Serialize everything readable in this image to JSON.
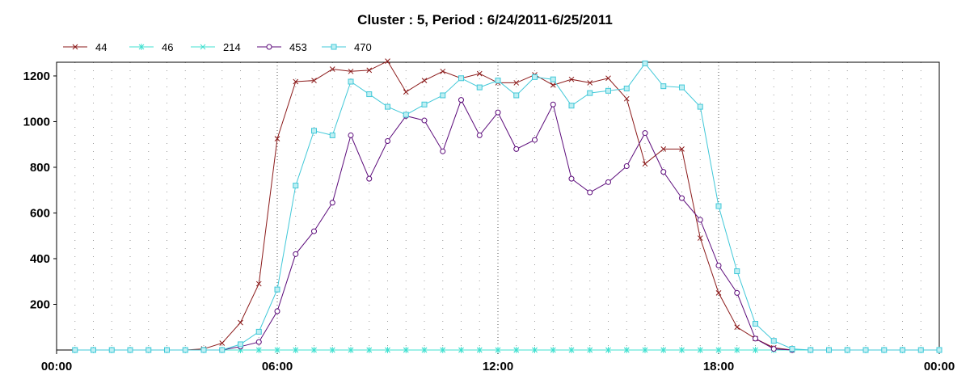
{
  "chart_data": {
    "type": "line",
    "title": "Cluster : 5, Period : 6/24/2011-6/25/2011",
    "xlabel": "",
    "ylabel": "",
    "x_unit": "hours",
    "xlim": [
      0,
      24
    ],
    "ylim": [
      0,
      1260
    ],
    "x_ticks": [
      {
        "value": 0,
        "label": "00:00"
      },
      {
        "value": 6,
        "label": "06:00"
      },
      {
        "value": 12,
        "label": "12:00"
      },
      {
        "value": 18,
        "label": "18:00"
      },
      {
        "value": 24,
        "label": "00:00"
      }
    ],
    "y_ticks": [
      200,
      400,
      600,
      800,
      1000,
      1200
    ],
    "grid": "dotted vertical lines every 30 minutes, heavier every 6 hours",
    "legend_position": "top-left",
    "series": [
      {
        "name": "44",
        "color": "#8b1a1a",
        "marker": "x",
        "points": [
          [
            0.5,
            0
          ],
          [
            1,
            0
          ],
          [
            1.5,
            0
          ],
          [
            2,
            0
          ],
          [
            2.5,
            0
          ],
          [
            3,
            0
          ],
          [
            3.5,
            0
          ],
          [
            4,
            5
          ],
          [
            4.5,
            30
          ],
          [
            5,
            120
          ],
          [
            5.5,
            290
          ],
          [
            6,
            925
          ],
          [
            6.5,
            1175
          ],
          [
            7,
            1180
          ],
          [
            7.5,
            1230
          ],
          [
            8,
            1220
          ],
          [
            8.5,
            1225
          ],
          [
            9,
            1265
          ],
          [
            9.5,
            1130
          ],
          [
            10,
            1180
          ],
          [
            10.5,
            1220
          ],
          [
            11,
            1190
          ],
          [
            11.5,
            1210
          ],
          [
            12,
            1170
          ],
          [
            12.5,
            1170
          ],
          [
            13,
            1205
          ],
          [
            13.5,
            1160
          ],
          [
            14,
            1185
          ],
          [
            14.5,
            1170
          ],
          [
            15,
            1190
          ],
          [
            15.5,
            1100
          ],
          [
            16,
            815
          ],
          [
            16.5,
            880
          ],
          [
            17,
            880
          ],
          [
            17.5,
            490
          ],
          [
            18,
            250
          ],
          [
            18.5,
            100
          ],
          [
            19,
            50
          ],
          [
            19.5,
            10
          ],
          [
            20,
            0
          ],
          [
            20.5,
            0
          ],
          [
            21,
            0
          ],
          [
            21.5,
            0
          ],
          [
            22,
            0
          ],
          [
            22.5,
            0
          ],
          [
            23,
            0
          ],
          [
            23.5,
            0
          ],
          [
            24,
            0
          ]
        ]
      },
      {
        "name": "46",
        "color": "#40e0d0",
        "marker": "star",
        "points": [
          [
            0.5,
            0
          ],
          [
            1,
            0
          ],
          [
            1.5,
            0
          ],
          [
            2,
            0
          ],
          [
            2.5,
            0
          ],
          [
            3,
            0
          ],
          [
            3.5,
            0
          ],
          [
            4,
            0
          ],
          [
            4.5,
            0
          ],
          [
            5,
            0
          ],
          [
            5.5,
            0
          ],
          [
            6,
            0
          ],
          [
            6.5,
            0
          ],
          [
            7,
            0
          ],
          [
            7.5,
            0
          ],
          [
            8,
            0
          ],
          [
            8.5,
            0
          ],
          [
            9,
            0
          ],
          [
            9.5,
            0
          ],
          [
            10,
            0
          ],
          [
            10.5,
            0
          ],
          [
            11,
            0
          ],
          [
            11.5,
            0
          ],
          [
            12,
            0
          ],
          [
            12.5,
            0
          ],
          [
            13,
            0
          ],
          [
            13.5,
            0
          ],
          [
            14,
            0
          ],
          [
            14.5,
            0
          ],
          [
            15,
            0
          ],
          [
            15.5,
            0
          ],
          [
            16,
            0
          ],
          [
            16.5,
            0
          ],
          [
            17,
            0
          ],
          [
            17.5,
            0
          ],
          [
            18,
            0
          ],
          [
            18.5,
            0
          ],
          [
            19,
            0
          ],
          [
            19.5,
            0
          ],
          [
            20,
            0
          ],
          [
            20.5,
            0
          ],
          [
            21,
            0
          ],
          [
            21.5,
            0
          ],
          [
            22,
            0
          ],
          [
            22.5,
            0
          ],
          [
            23,
            0
          ],
          [
            23.5,
            0
          ],
          [
            24,
            0
          ]
        ]
      },
      {
        "name": "214",
        "color": "#40e0d0",
        "marker": "x",
        "points": [
          [
            0.5,
            0
          ],
          [
            1,
            0
          ],
          [
            1.5,
            0
          ],
          [
            2,
            0
          ],
          [
            2.5,
            0
          ],
          [
            3,
            0
          ],
          [
            3.5,
            0
          ],
          [
            4,
            0
          ],
          [
            4.5,
            0
          ],
          [
            5,
            0
          ],
          [
            5.5,
            0
          ],
          [
            6,
            0
          ],
          [
            6.5,
            0
          ],
          [
            7,
            0
          ],
          [
            7.5,
            0
          ],
          [
            8,
            0
          ],
          [
            8.5,
            0
          ],
          [
            9,
            0
          ],
          [
            9.5,
            0
          ],
          [
            10,
            0
          ],
          [
            10.5,
            0
          ],
          [
            11,
            0
          ],
          [
            11.5,
            0
          ],
          [
            12,
            0
          ],
          [
            12.5,
            0
          ],
          [
            13,
            0
          ],
          [
            13.5,
            0
          ],
          [
            14,
            0
          ],
          [
            14.5,
            0
          ],
          [
            15,
            0
          ],
          [
            15.5,
            0
          ],
          [
            16,
            0
          ],
          [
            16.5,
            0
          ],
          [
            17,
            0
          ],
          [
            17.5,
            0
          ],
          [
            18,
            0
          ],
          [
            18.5,
            0
          ],
          [
            19,
            0
          ],
          [
            19.5,
            0
          ],
          [
            20,
            0
          ],
          [
            20.5,
            0
          ],
          [
            21,
            0
          ],
          [
            21.5,
            0
          ],
          [
            22,
            0
          ],
          [
            22.5,
            0
          ],
          [
            23,
            0
          ],
          [
            23.5,
            0
          ],
          [
            24,
            0
          ]
        ]
      },
      {
        "name": "453",
        "color": "#5b0a7a",
        "marker": "circle",
        "points": [
          [
            4,
            0
          ],
          [
            4.5,
            0
          ],
          [
            5,
            15
          ],
          [
            5.5,
            35
          ],
          [
            6,
            170
          ],
          [
            6.5,
            420
          ],
          [
            7,
            520
          ],
          [
            7.5,
            645
          ],
          [
            8,
            940
          ],
          [
            8.5,
            750
          ],
          [
            9,
            915
          ],
          [
            9.5,
            1025
          ],
          [
            10,
            1005
          ],
          [
            10.5,
            870
          ],
          [
            11,
            1095
          ],
          [
            11.5,
            940
          ],
          [
            12,
            1040
          ],
          [
            12.5,
            880
          ],
          [
            13,
            920
          ],
          [
            13.5,
            1075
          ],
          [
            14,
            750
          ],
          [
            14.5,
            690
          ],
          [
            15,
            735
          ],
          [
            15.5,
            805
          ],
          [
            16,
            950
          ],
          [
            16.5,
            780
          ],
          [
            17,
            665
          ],
          [
            17.5,
            570
          ],
          [
            18,
            370
          ],
          [
            18.5,
            250
          ],
          [
            19,
            50
          ],
          [
            19.5,
            5
          ],
          [
            20,
            0
          ]
        ]
      },
      {
        "name": "470",
        "color": "#40c8d8",
        "marker": "square",
        "points": [
          [
            0.5,
            0
          ],
          [
            1,
            0
          ],
          [
            1.5,
            0
          ],
          [
            2,
            0
          ],
          [
            2.5,
            0
          ],
          [
            3,
            0
          ],
          [
            3.5,
            0
          ],
          [
            4,
            0
          ],
          [
            4.5,
            0
          ],
          [
            5,
            25
          ],
          [
            5.5,
            80
          ],
          [
            6,
            265
          ],
          [
            6.5,
            720
          ],
          [
            7,
            960
          ],
          [
            7.5,
            940
          ],
          [
            8,
            1175
          ],
          [
            8.5,
            1120
          ],
          [
            9,
            1065
          ],
          [
            9.5,
            1030
          ],
          [
            10,
            1075
          ],
          [
            10.5,
            1115
          ],
          [
            11,
            1190
          ],
          [
            11.5,
            1150
          ],
          [
            12,
            1180
          ],
          [
            12.5,
            1115
          ],
          [
            13,
            1195
          ],
          [
            13.5,
            1185
          ],
          [
            14,
            1070
          ],
          [
            14.5,
            1125
          ],
          [
            15,
            1135
          ],
          [
            15.5,
            1145
          ],
          [
            16,
            1255
          ],
          [
            16.5,
            1155
          ],
          [
            17,
            1150
          ],
          [
            17.5,
            1065
          ],
          [
            18,
            630
          ],
          [
            18.5,
            345
          ],
          [
            19,
            115
          ],
          [
            19.5,
            40
          ],
          [
            20,
            5
          ],
          [
            20.5,
            0
          ],
          [
            21,
            0
          ],
          [
            21.5,
            0
          ],
          [
            22,
            0
          ],
          [
            22.5,
            0
          ],
          [
            23,
            0
          ],
          [
            23.5,
            0
          ],
          [
            24,
            0
          ]
        ]
      }
    ]
  }
}
